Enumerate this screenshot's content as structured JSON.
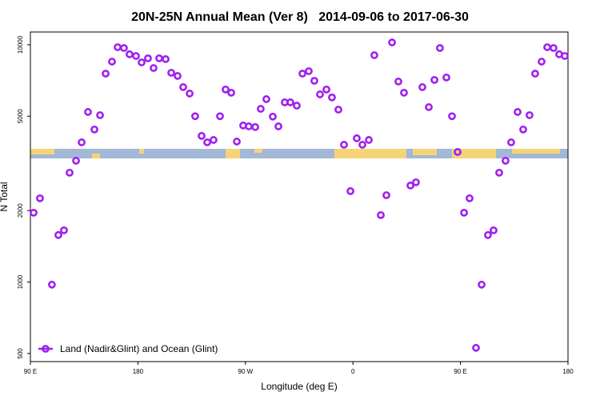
{
  "chart_data": {
    "type": "scatter",
    "title": "20N-25N Annual Mean (Ver 8)   2014-09-06 to 2017-06-30",
    "xlabel": "Longitude (deg E)",
    "ylabel": "N Total",
    "log_y": true,
    "legend": "bottom-left",
    "xlim": [
      -270,
      180
    ],
    "xticks": [
      {
        "value": -270,
        "label": "90 E"
      },
      {
        "value": -180,
        "label": "180"
      },
      {
        "value": -90,
        "label": "90 W"
      },
      0,
      {
        "value": 90,
        "label": "90 E"
      },
      180
    ],
    "ylim": [
      462,
      11320
    ],
    "yticks": [
      500,
      1000,
      2000,
      5000,
      10000
    ],
    "x": [
      -267.3,
      -262,
      -252,
      -246.6,
      -241.9,
      -237.2,
      -231.8,
      -227.1,
      -221.8,
      -216.4,
      -211.7,
      -207,
      -201.7,
      -197,
      -191.7,
      -187,
      -181.6,
      -176.9,
      -171.6,
      -166.9,
      -162.2,
      -156.8,
      -152.1,
      -146.8,
      -142.1,
      -136.7,
      -132.1,
      -126.7,
      -122,
      -116.7,
      -111.3,
      -106.6,
      -101.9,
      -97.2,
      -91.9,
      -87.2,
      -81.8,
      -77.2,
      -72.5,
      -67.1,
      -62.4,
      -57.1,
      -52.4,
      -47,
      -42.3,
      -37,
      -32.3,
      -27.6,
      -22.2,
      -17.6,
      -12.2,
      -7.5,
      -2.1,
      3.2,
      7.9,
      13.3,
      17.9,
      23.3,
      28,
      32.7,
      38,
      42.7,
      48.1,
      52.7,
      58.1,
      63.5,
      68.2,
      72.8,
      78.2,
      82.9,
      87.6,
      93,
      97.6,
      103,
      107.7,
      113,
      117.7,
      122.4,
      127.7,
      132.4,
      137.8,
      142.5,
      147.8,
      152.5,
      157.9,
      162.6,
      167.9,
      172.6,
      177.3
    ],
    "series": [
      {
        "name": "Land (Nadir&Glint) and Ocean (Glint)",
        "color": "#a020f0",
        "values": [
          1960,
          2254,
          975,
          1578,
          1652,
          2890,
          3245,
          3880,
          5210,
          4395,
          5050,
          7560,
          8490,
          9770,
          9690,
          9120,
          8970,
          8430,
          8770,
          7980,
          8770,
          8700,
          7620,
          7390,
          6630,
          6230,
          5000,
          4130,
          3880,
          3970,
          5000,
          6480,
          6280,
          3910,
          4570,
          4530,
          4500,
          5370,
          5900,
          4980,
          4530,
          5720,
          5720,
          5540,
          7560,
          7740,
          7050,
          6180,
          6480,
          6000,
          5330,
          3790,
          2416,
          4036,
          3790,
          3970,
          9040,
          1915,
          2323,
          10230,
          7000,
          6280,
          2552,
          2633,
          6630,
          5460,
          7110,
          9690,
          7280,
          5000,
          3534,
          1960,
          2254,
          528,
          975,
          1578,
          1652,
          2890,
          3245,
          3880,
          5210,
          4395,
          5050,
          7560,
          8490,
          9770,
          9690,
          9120,
          8970
        ]
      }
    ]
  }
}
